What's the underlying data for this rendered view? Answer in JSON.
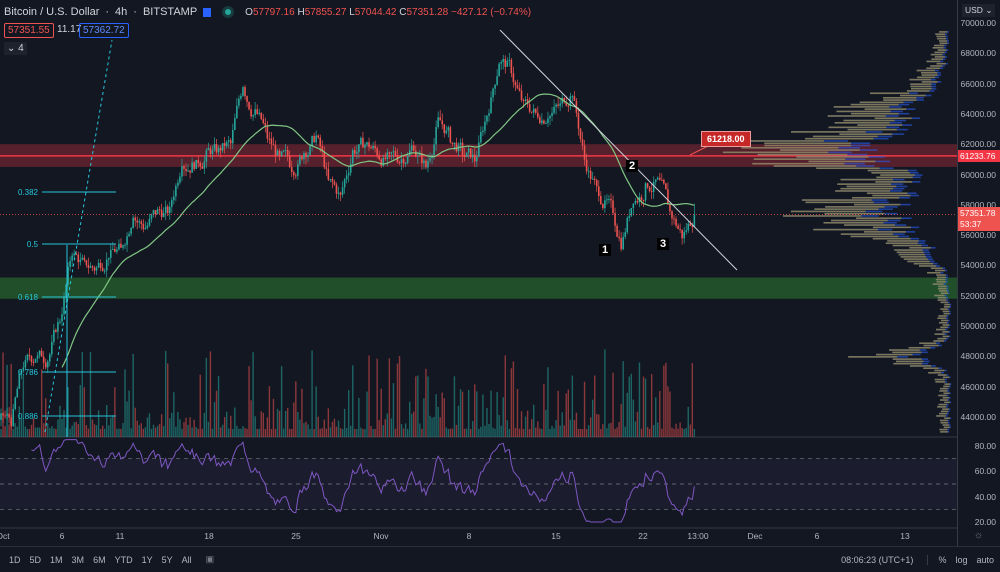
{
  "header": {
    "symbol": "Bitcoin / U.S. Dollar",
    "interval": "4h",
    "exchange": "BITSTAMP",
    "o_label": "O",
    "open": "57797.16",
    "h_label": "H",
    "high": "57855.27",
    "l_label": "L",
    "low": "57044.42",
    "c_label": "C",
    "close": "57351.28",
    "change": "−427.12 (−0.74%)",
    "sell": "57351.55",
    "spread": "11.17",
    "buy": "57362.72",
    "collapse": "4"
  },
  "price_axis": {
    "currency": "USD",
    "ticks": [
      "70000.00",
      "68000.00",
      "66000.00",
      "64000.00",
      "62000.00",
      "60000.00",
      "58000.00",
      "56000.00",
      "54000.00",
      "52000.00",
      "50000.00",
      "48000.00",
      "46000.00",
      "44000.00"
    ],
    "level_label": "61233.76",
    "current_price": "57351.78",
    "countdown": "53:37"
  },
  "rsi_axis": {
    "ticks": [
      "80.00",
      "60.00",
      "40.00",
      "20.00"
    ]
  },
  "time_axis": {
    "ticks": [
      "Oct",
      "6",
      "11",
      "18",
      "25",
      "Nov",
      "8",
      "15",
      "22",
      "13:00",
      "Dec",
      "6",
      "13"
    ]
  },
  "annotations": {
    "callout": "61218.00",
    "wave1": "1",
    "wave2": "2",
    "wave3": "3",
    "fib": [
      "0.382",
      "0.5",
      "0.618",
      "0.786",
      "0.886"
    ]
  },
  "toolbar": {
    "ranges": [
      "1D",
      "5D",
      "1M",
      "3M",
      "6M",
      "YTD",
      "1Y",
      "5Y",
      "All"
    ],
    "clock": "08:06:23 (UTC+1)",
    "percent": "%",
    "log": "log",
    "auto": "auto"
  },
  "colors": {
    "up": "#26a69a",
    "down": "#ef5350",
    "sma": "#81c784",
    "rsi": "#7e57c2",
    "resistance": "#f23645",
    "support": "#2e7d32",
    "fib": "#26c6da"
  },
  "chart_data": {
    "type": "candlestick",
    "interval": "4h",
    "ylim": [
      43000,
      71000
    ],
    "daily_close_approx_from": "Oct 1",
    "daily_close_approx": [
      43800,
      47500,
      48000,
      47800,
      50500,
      55000,
      54000,
      53800,
      54800,
      55000,
      57500,
      56500,
      57500,
      57500,
      61000,
      60800,
      61200,
      61500,
      62000,
      66000,
      64000,
      62500,
      61000,
      60500,
      61500,
      62500,
      59500,
      58500,
      61500,
      62000,
      61500,
      61000,
      61000,
      62000,
      60500,
      63500,
      62500,
      61500,
      61000,
      64000,
      67500,
      67000,
      64500,
      64000,
      64000,
      64500,
      65500,
      61000,
      59000,
      58000,
      55500,
      58500,
      59000,
      59500,
      57500,
      56000,
      57350
    ],
    "resistance_zone": [
      60500,
      62000
    ],
    "support_zone": [
      51800,
      53200
    ],
    "rsi_levels": [
      70,
      50,
      30
    ]
  }
}
